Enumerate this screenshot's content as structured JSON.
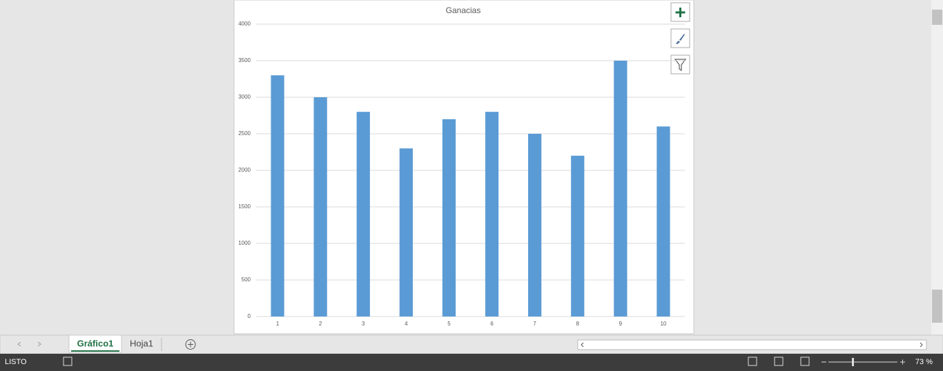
{
  "chart_data": {
    "type": "bar",
    "title": "Ganacias",
    "categories": [
      "1",
      "2",
      "3",
      "4",
      "5",
      "6",
      "7",
      "8",
      "9",
      "10"
    ],
    "values": [
      3300,
      3000,
      2800,
      2300,
      2700,
      2800,
      2500,
      2200,
      3500,
      2600
    ],
    "color": "#5b9bd5",
    "ylim": [
      0,
      4000
    ],
    "yticks": [
      0,
      500,
      1000,
      1500,
      2000,
      2500,
      3000,
      3500,
      4000
    ],
    "grid": true
  },
  "sheet_tabs": [
    "Gráfico1",
    "Hoja1"
  ],
  "status": "LISTO",
  "zoom": "73 %"
}
